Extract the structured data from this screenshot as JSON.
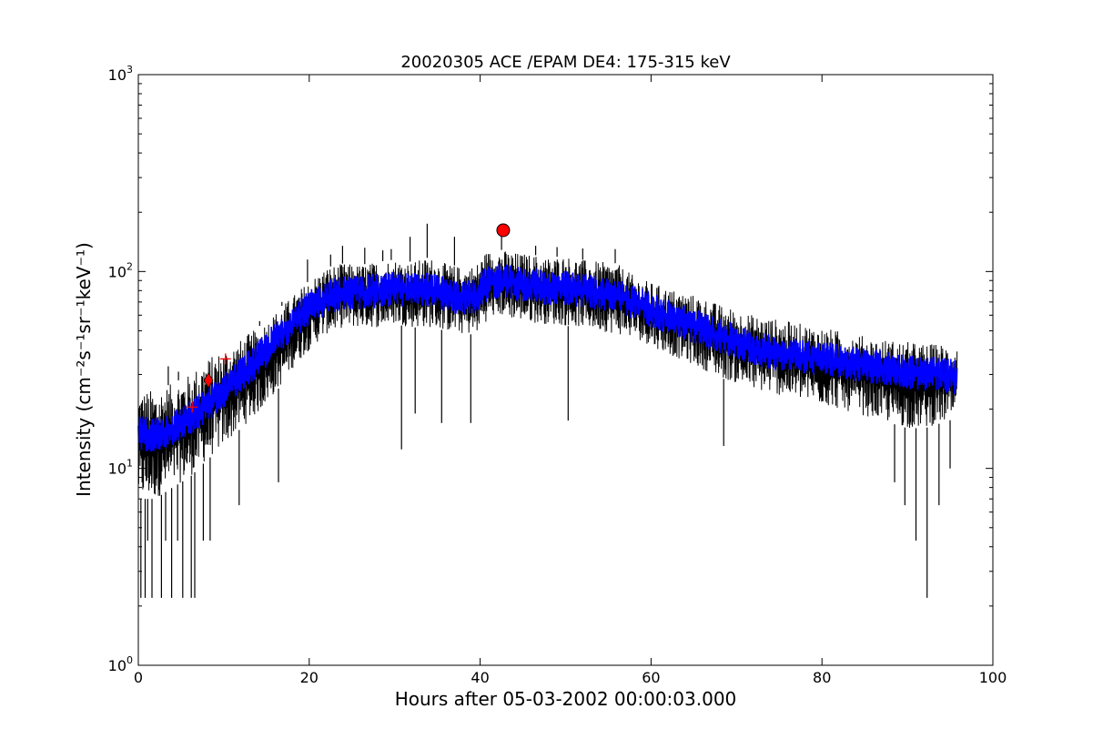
{
  "chart_data": {
    "type": "line",
    "title": "20020305 ACE /EPAM DE4: 175-315 keV",
    "xlabel": "Hours after 05-03-2002 00:00:03.000",
    "ylabel": "Intensity (cm⁻²s⁻¹sr⁻¹keV⁻¹)",
    "xlim": [
      0,
      100
    ],
    "ylim": [
      1,
      1000
    ],
    "y_scale": "log",
    "grid": false,
    "x_ticks": [
      "0",
      "20",
      "40",
      "60",
      "80",
      "100"
    ],
    "y_ticks": [
      {
        "base": "10",
        "exp": "0"
      },
      {
        "base": "10",
        "exp": "1"
      },
      {
        "base": "10",
        "exp": "2"
      },
      {
        "base": "10",
        "exp": "3"
      }
    ],
    "series": [
      {
        "name": "",
        "role": "raw intensity",
        "color": "#000000",
        "x_end": 95.8,
        "envelope": {
          "x": [
            0,
            2,
            4,
            6,
            8,
            10,
            12,
            14,
            16,
            18,
            20,
            22,
            24,
            26,
            28,
            30,
            32,
            34,
            36,
            38,
            39.5,
            40.5,
            42,
            44,
            46,
            48,
            50,
            52,
            54,
            56,
            58,
            60,
            62,
            64,
            66,
            68,
            70,
            72,
            74,
            76,
            78,
            80,
            82,
            84,
            86,
            88,
            90,
            92,
            94,
            95.8
          ],
          "upper": [
            25,
            25,
            27,
            30,
            36,
            40,
            45,
            52,
            62,
            75,
            90,
            105,
            110,
            108,
            112,
            115,
            112,
            118,
            110,
            105,
            108,
            125,
            130,
            125,
            122,
            118,
            120,
            115,
            112,
            110,
            95,
            88,
            82,
            78,
            74,
            68,
            64,
            60,
            58,
            56,
            54,
            52,
            50,
            48,
            46,
            45,
            44,
            43,
            43,
            42
          ],
          "lower": [
            7,
            7,
            8,
            9,
            11,
            13,
            16,
            19,
            24,
            32,
            40,
            48,
            52,
            52,
            52,
            54,
            52,
            52,
            50,
            48,
            48,
            55,
            60,
            57,
            55,
            54,
            53,
            52,
            50,
            48,
            46,
            42,
            38,
            35,
            32,
            29,
            27,
            25,
            24,
            23,
            22,
            21,
            20,
            19,
            18,
            17,
            16,
            16,
            17,
            18
          ]
        }
      },
      {
        "name": "",
        "role": "smoothed intensity",
        "color": "#0000ff",
        "x": [
          0,
          2,
          4,
          6,
          8,
          10,
          12,
          14,
          16,
          18,
          20,
          22,
          24,
          26,
          28,
          30,
          32,
          34,
          36,
          38,
          39.5,
          40.5,
          42,
          44,
          46,
          48,
          50,
          52,
          54,
          56,
          58,
          60,
          62,
          64,
          66,
          68,
          70,
          72,
          74,
          76,
          78,
          80,
          82,
          84,
          86,
          88,
          90,
          92,
          94,
          95.8
        ],
        "y": [
          15,
          15,
          16,
          18,
          21,
          25,
          30,
          36,
          45,
          55,
          65,
          74,
          78,
          78,
          80,
          82,
          80,
          82,
          76,
          73,
          75,
          85,
          90,
          87,
          85,
          83,
          82,
          80,
          78,
          75,
          70,
          64,
          59,
          55,
          51,
          47,
          44,
          41,
          39,
          38,
          37,
          36,
          35,
          34,
          33,
          32,
          31,
          30,
          30,
          29
        ],
        "spread": 0.09
      }
    ],
    "markers": [
      {
        "shape": "plus",
        "x": 6.3,
        "y": 20.5,
        "color": "#ff0000"
      },
      {
        "shape": "diamond",
        "x": 8.2,
        "y": 28,
        "color": "#ff0000"
      },
      {
        "shape": "plus",
        "x": 10.2,
        "y": 36,
        "color": "#ff0000"
      },
      {
        "shape": "circle",
        "x": 42.7,
        "y": 162,
        "color": "#ff0000"
      }
    ],
    "spikes": [
      {
        "x": 0.3,
        "y": 2.2
      },
      {
        "x": 0.8,
        "y": 2.2
      },
      {
        "x": 1.6,
        "y": 2.2
      },
      {
        "x": 2.7,
        "y": 2.2
      },
      {
        "x": 3.9,
        "y": 2.2
      },
      {
        "x": 5.2,
        "y": 2.2
      },
      {
        "x": 6.2,
        "y": 2.2
      },
      {
        "x": 6.6,
        "y": 2.2
      },
      {
        "x": 1.1,
        "y": 4.3
      },
      {
        "x": 3.2,
        "y": 4.3
      },
      {
        "x": 4.6,
        "y": 4.3
      },
      {
        "x": 7.6,
        "y": 4.3
      },
      {
        "x": 8.4,
        "y": 4.3
      },
      {
        "x": 11.8,
        "y": 6.5
      },
      {
        "x": 16.4,
        "y": 8.5
      },
      {
        "x": 30.8,
        "y": 12.5
      },
      {
        "x": 32.4,
        "y": 19
      },
      {
        "x": 35.5,
        "y": 17
      },
      {
        "x": 38.9,
        "y": 17
      },
      {
        "x": 50.3,
        "y": 17.5
      },
      {
        "x": 68.5,
        "y": 13
      },
      {
        "x": 88.5,
        "y": 8.5
      },
      {
        "x": 89.7,
        "y": 6.5
      },
      {
        "x": 91.0,
        "y": 4.3
      },
      {
        "x": 92.3,
        "y": 2.2
      },
      {
        "x": 93.7,
        "y": 6.5
      },
      {
        "x": 95.0,
        "y": 10
      }
    ],
    "peaks": [
      {
        "x": 19.8,
        "y": 115
      },
      {
        "x": 22.5,
        "y": 122
      },
      {
        "x": 23.9,
        "y": 135
      },
      {
        "x": 26.5,
        "y": 132
      },
      {
        "x": 28.6,
        "y": 128
      },
      {
        "x": 29.6,
        "y": 130
      },
      {
        "x": 31.8,
        "y": 150
      },
      {
        "x": 33.8,
        "y": 175
      },
      {
        "x": 37.0,
        "y": 150
      },
      {
        "x": 42.5,
        "y": 155
      },
      {
        "x": 46.5,
        "y": 135
      },
      {
        "x": 49.0,
        "y": 133
      },
      {
        "x": 52.0,
        "y": 131
      },
      {
        "x": 55.8,
        "y": 130
      },
      {
        "x": 12.9,
        "y": 42
      },
      {
        "x": 14.2,
        "y": 56
      },
      {
        "x": 16.8,
        "y": 70
      },
      {
        "x": 3.5,
        "y": 33
      },
      {
        "x": 4.7,
        "y": 31
      }
    ]
  }
}
